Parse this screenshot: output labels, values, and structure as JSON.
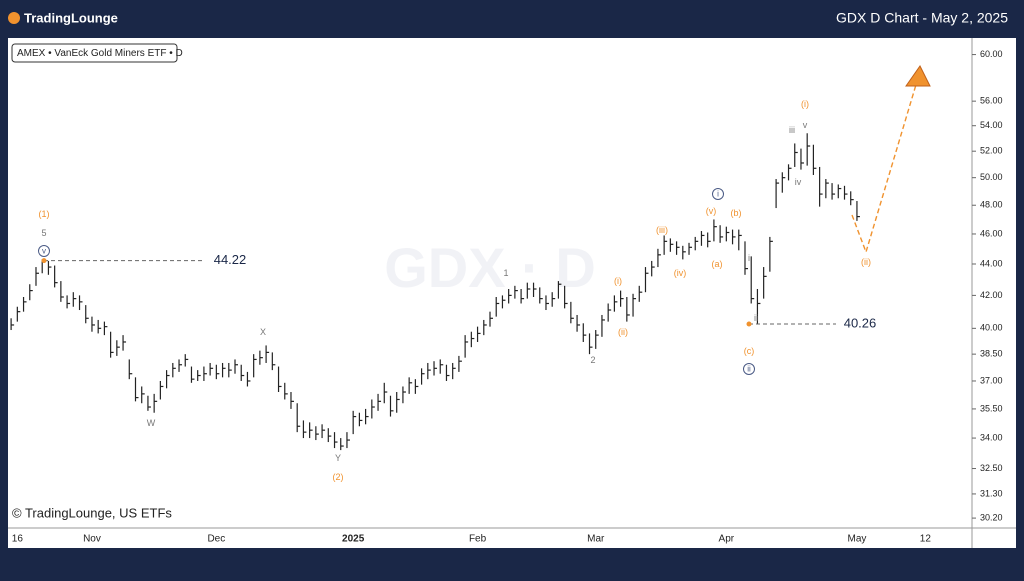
{
  "header": {
    "logo": "TradingLounge",
    "title": "GDX D Chart - May 2, 2025"
  },
  "chart_data": {
    "type": "ohlc",
    "subtitle": "AMEX • VanEck Gold Miners ETF • D",
    "watermark": "GDX · D",
    "copyright": "© TradingLounge, US ETFs",
    "log_scale": true,
    "color": "#222222",
    "ylim": [
      29.76,
      61.4
    ],
    "yticks": [
      {
        "value": 60,
        "label": "60.00"
      },
      {
        "value": 56,
        "label": "56.00"
      },
      {
        "value": 54,
        "label": "54.00"
      },
      {
        "value": 52,
        "label": "52.00"
      },
      {
        "value": 50,
        "label": "50.00"
      },
      {
        "value": 48,
        "label": "48.00"
      },
      {
        "value": 46,
        "label": "46.00"
      },
      {
        "value": 44,
        "label": "44.00"
      },
      {
        "value": 42,
        "label": "42.00"
      },
      {
        "value": 40,
        "label": "40.00"
      },
      {
        "value": 38.5,
        "label": "38.50"
      },
      {
        "value": 37,
        "label": "37.00"
      },
      {
        "value": 35.5,
        "label": "35.50"
      },
      {
        "value": 34,
        "label": "34.00"
      },
      {
        "value": 32.5,
        "label": "32.50"
      },
      {
        "value": 31.3,
        "label": "31.30"
      },
      {
        "value": 30.2,
        "label": "30.20"
      }
    ],
    "categories": [
      null,
      "16",
      null,
      null,
      null,
      null,
      null,
      null,
      null,
      null,
      null,
      null,
      null,
      "Nov",
      null,
      null,
      null,
      null,
      null,
      null,
      null,
      null,
      null,
      null,
      null,
      null,
      null,
      null,
      null,
      null,
      null,
      null,
      null,
      "Dec",
      null,
      null,
      null,
      null,
      null,
      null,
      null,
      null,
      null,
      null,
      null,
      null,
      null,
      null,
      null,
      null,
      null,
      null,
      null,
      null,
      null,
      "2025",
      null,
      null,
      null,
      null,
      null,
      null,
      null,
      null,
      null,
      null,
      null,
      null,
      null,
      null,
      null,
      null,
      null,
      null,
      null,
      "Feb",
      null,
      null,
      null,
      null,
      null,
      null,
      null,
      null,
      null,
      null,
      null,
      null,
      null,
      null,
      null,
      null,
      null,
      null,
      "Mar",
      null,
      null,
      null,
      null,
      null,
      null,
      null,
      null,
      null,
      null,
      null,
      null,
      null,
      null,
      null,
      null,
      null,
      null,
      null,
      null,
      "Apr",
      null,
      null,
      null,
      null,
      null,
      null,
      null,
      null,
      null,
      null,
      null,
      null,
      null,
      null,
      null,
      null,
      null,
      null,
      null,
      null,
      "May",
      null,
      null,
      null,
      null,
      null,
      null,
      null,
      null,
      null,
      null,
      "12",
      null,
      null,
      null,
      null,
      null,
      null,
      null
    ],
    "high": [
      40.6,
      41.3,
      41.9,
      42.7,
      43.8,
      44.3,
      44.2,
      43.9,
      42.9,
      42.0,
      42.2,
      42.0,
      41.4,
      40.7,
      40.5,
      40.4,
      39.8,
      39.3,
      39.6,
      38.2,
      37.2,
      36.7,
      36.2,
      36.3,
      37.0,
      37.6,
      38.0,
      38.2,
      38.5,
      37.8,
      37.6,
      37.8,
      38.0,
      37.9,
      38.0,
      38.0,
      38.2,
      37.9,
      37.5,
      38.5,
      38.7,
      39.0,
      38.6,
      37.8,
      36.9,
      36.4,
      35.8,
      34.9,
      34.8,
      34.6,
      34.7,
      34.5,
      34.3,
      34.0,
      34.3,
      35.4,
      35.3,
      35.5,
      36.0,
      36.3,
      36.9,
      36.2,
      36.4,
      36.7,
      37.2,
      37.1,
      37.7,
      38.0,
      38.1,
      38.2,
      37.9,
      38.0,
      38.4,
      39.6,
      39.8,
      40.1,
      40.5,
      41.0,
      41.9,
      42.0,
      42.4,
      42.6,
      42.4,
      42.8,
      42.8,
      42.5,
      42.0,
      42.2,
      42.9,
      42.6,
      41.6,
      40.8,
      40.3,
      39.7,
      39.9,
      40.8,
      41.5,
      42.0,
      42.3,
      41.9,
      42.1,
      42.6,
      43.8,
      44.2,
      45.0,
      45.9,
      45.7,
      45.5,
      45.2,
      45.4,
      45.8,
      46.2,
      46.1,
      47.0,
      46.6,
      46.5,
      46.3,
      46.3,
      45.5,
      44.5,
      42.4,
      43.8,
      45.8,
      49.9,
      50.4,
      51.0,
      52.6,
      52.2,
      53.4,
      52.5,
      50.8,
      49.9,
      49.6,
      49.5,
      49.4,
      49.0,
      48.3,
      null,
      null,
      null,
      null,
      null,
      null,
      null,
      null,
      null,
      null,
      null,
      null,
      null,
      null,
      null,
      null,
      null,
      null
    ],
    "low": [
      39.9,
      40.4,
      41.0,
      41.7,
      42.6,
      43.4,
      43.3,
      42.5,
      41.6,
      41.2,
      41.3,
      41.1,
      40.3,
      39.8,
      39.7,
      39.6,
      38.3,
      38.4,
      38.7,
      37.1,
      35.9,
      35.8,
      35.4,
      35.3,
      36.0,
      36.6,
      37.2,
      37.5,
      37.8,
      36.9,
      37.0,
      37.0,
      37.3,
      37.1,
      37.2,
      37.2,
      37.4,
      37.0,
      36.7,
      37.2,
      37.9,
      38.0,
      37.6,
      36.4,
      36.0,
      35.5,
      34.3,
      34.0,
      34.0,
      33.9,
      34.0,
      33.8,
      33.5,
      33.4,
      33.5,
      34.2,
      34.6,
      34.7,
      35.0,
      35.4,
      35.8,
      35.1,
      35.3,
      35.8,
      36.3,
      36.3,
      36.8,
      37.1,
      37.3,
      37.4,
      37.0,
      37.1,
      37.5,
      38.3,
      38.9,
      39.2,
      39.6,
      40.1,
      40.7,
      41.2,
      41.5,
      41.8,
      41.5,
      41.8,
      41.9,
      41.5,
      41.1,
      41.3,
      41.8,
      41.2,
      40.3,
      39.8,
      39.2,
      38.5,
      38.8,
      39.5,
      40.4,
      41.0,
      41.3,
      40.4,
      40.7,
      41.6,
      42.2,
      43.2,
      43.8,
      44.6,
      44.8,
      44.6,
      44.3,
      44.6,
      44.9,
      45.2,
      45.1,
      45.5,
      45.4,
      45.5,
      45.3,
      44.9,
      43.3,
      41.5,
      40.26,
      41.8,
      43.5,
      47.8,
      48.9,
      49.8,
      50.8,
      50.6,
      50.9,
      50.2,
      47.9,
      48.5,
      48.4,
      48.5,
      48.4,
      48.0,
      46.9,
      null,
      null,
      null,
      null,
      null,
      null,
      null,
      null,
      null,
      null,
      null,
      null,
      null,
      null,
      null,
      null,
      null,
      null
    ],
    "close": [
      40.2,
      41.0,
      41.6,
      42.3,
      43.4,
      44.2,
      43.8,
      42.8,
      41.9,
      41.5,
      41.8,
      41.6,
      40.6,
      40.2,
      40.0,
      40.1,
      38.6,
      38.9,
      39.2,
      37.4,
      36.1,
      36.3,
      35.6,
      35.9,
      36.7,
      37.3,
      37.7,
      37.9,
      38.2,
      37.1,
      37.3,
      37.4,
      37.7,
      37.4,
      37.7,
      37.6,
      37.9,
      37.3,
      37.0,
      38.2,
      38.3,
      38.6,
      37.9,
      36.7,
      36.3,
      35.9,
      34.6,
      34.3,
      34.4,
      34.2,
      34.4,
      34.1,
      33.8,
      33.6,
      33.9,
      35.1,
      34.9,
      35.1,
      35.6,
      35.9,
      36.4,
      35.4,
      36.0,
      36.4,
      36.9,
      36.7,
      37.4,
      37.6,
      37.7,
      37.9,
      37.3,
      37.7,
      38.1,
      39.2,
      39.4,
      39.7,
      40.2,
      40.6,
      41.5,
      41.7,
      42.0,
      42.3,
      41.8,
      42.4,
      42.4,
      41.8,
      41.5,
      41.8,
      42.7,
      41.5,
      40.6,
      40.2,
      39.6,
      38.9,
      39.6,
      40.5,
      41.1,
      41.6,
      41.8,
      40.8,
      41.8,
      42.2,
      43.4,
      43.8,
      44.6,
      45.5,
      45.3,
      45.1,
      44.8,
      45.1,
      45.5,
      45.9,
      45.5,
      46.5,
      45.8,
      46.1,
      45.8,
      45.9,
      43.7,
      41.8,
      41.5,
      43.2,
      45.5,
      49.6,
      50.0,
      50.7,
      51.9,
      51.1,
      52.4,
      50.7,
      48.8,
      49.6,
      48.8,
      49.2,
      48.8,
      48.4,
      47.2,
      null,
      null,
      null,
      null,
      null,
      null,
      null,
      null,
      null,
      null,
      null,
      null,
      null,
      null,
      null,
      null,
      null,
      null
    ],
    "levels": [
      44.22,
      40.26
    ],
    "annotations": [
      "(1)",
      "5",
      "v",
      "X",
      "W",
      "Y",
      "(2)",
      "1",
      "2",
      "(i)",
      "(ii)",
      "(iii)",
      "(iv)",
      "(v)",
      "(a)",
      "(b)",
      "(c)",
      "i",
      "ii",
      "i",
      "ii",
      "iii",
      "iv",
      "v",
      "(i)",
      "(ii)"
    ]
  }
}
